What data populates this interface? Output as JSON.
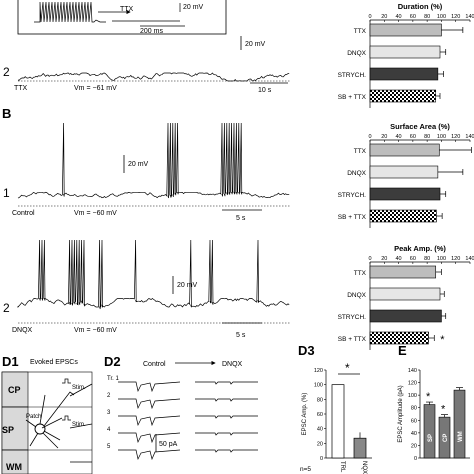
{
  "panel_labels": {
    "B": "B",
    "D1": "D1",
    "D2": "D2",
    "D3": "D3",
    "E": "E"
  },
  "panel_A": {
    "inset_drug": "TTX",
    "inset_scale_mv": "20 mV",
    "inset_scale_ms": "200 ms",
    "trace_number": "2",
    "trace_label": "TTX",
    "vm_label": "Vm = −61 mV",
    "scale_mv": "20 mV",
    "scale_s": "10 s"
  },
  "panel_B": {
    "trace1_number": "1",
    "trace1_label": "Control",
    "trace1_vm": "Vm = −60 mV",
    "trace1_scale_mv": "20 mV",
    "trace1_scale_s": "5 s",
    "trace2_number": "2",
    "trace2_label": "DNQX",
    "trace2_vm": "Vm = −60 mV",
    "trace2_scale_mv": "20 mV",
    "trace2_scale_s": "5 s"
  },
  "panel_D1": {
    "title": "Evoked EPSCs",
    "layers": [
      "CP",
      "SP",
      "WM"
    ],
    "patch_label": "Patch",
    "stim_label": "Stim."
  },
  "panel_D2": {
    "control_label": "Control",
    "dnqx_label": "DNQX",
    "trial_labels": [
      "Tr. 1",
      "2",
      "3",
      "4",
      "5"
    ],
    "scale_pa": "50 pA"
  },
  "chart_data": [
    {
      "type": "bar",
      "title": "Duration (%)",
      "categories": [
        "TTX",
        "DNQX",
        "STRYCH.",
        "SB + TTX"
      ],
      "values": [
        100,
        98,
        95,
        92
      ],
      "errors": [
        30,
        8,
        8,
        6
      ],
      "xlim": [
        0,
        140
      ],
      "ticks": [
        "0",
        "20",
        "40",
        "60",
        "80",
        "100",
        "120",
        "140"
      ],
      "significance": []
    },
    {
      "type": "bar",
      "title": "Surface Area (%)",
      "categories": [
        "TTX",
        "DNQX",
        "STRYCH.",
        "SB + TTX"
      ],
      "values": [
        97,
        95,
        98,
        93
      ],
      "errors": [
        45,
        35,
        8,
        8
      ],
      "xlim": [
        0,
        140
      ],
      "ticks": [
        "0",
        "20",
        "40",
        "60",
        "80",
        "100",
        "120",
        "140"
      ],
      "significance": []
    },
    {
      "type": "bar",
      "title": "Peak Amp. (%)",
      "categories": [
        "TTX",
        "DNQX",
        "STRYCH.",
        "SB + TTX"
      ],
      "values": [
        92,
        98,
        100,
        82
      ],
      "errors": [
        8,
        6,
        6,
        8
      ],
      "xlim": [
        0,
        140
      ],
      "ticks": [
        "0",
        "20",
        "40",
        "60",
        "80",
        "100",
        "120",
        "140"
      ],
      "significance": [
        "",
        "",
        "",
        "*"
      ]
    },
    {
      "type": "bar",
      "categories": [
        "TRL",
        "NQX"
      ],
      "values": [
        100,
        27
      ],
      "errors": [
        0,
        8
      ],
      "ylabel": "EPSC Amp. (%)",
      "ylim": [
        0,
        120
      ],
      "ticks": [
        "0",
        "20",
        "40",
        "60",
        "80",
        "100",
        "120"
      ],
      "significance_mark": "*",
      "n_label": "n=5"
    },
    {
      "type": "bar",
      "categories": [
        "SP",
        "CP",
        "WM"
      ],
      "values": [
        85,
        65,
        108
      ],
      "errors": [
        4,
        4,
        4
      ],
      "ylabel": "EPSC Amplitude (pA)",
      "ylim": [
        0,
        140
      ],
      "ticks": [
        "0",
        "20",
        "40",
        "60",
        "80",
        "100",
        "120",
        "140"
      ],
      "significance": [
        "*",
        "*",
        ""
      ]
    }
  ]
}
